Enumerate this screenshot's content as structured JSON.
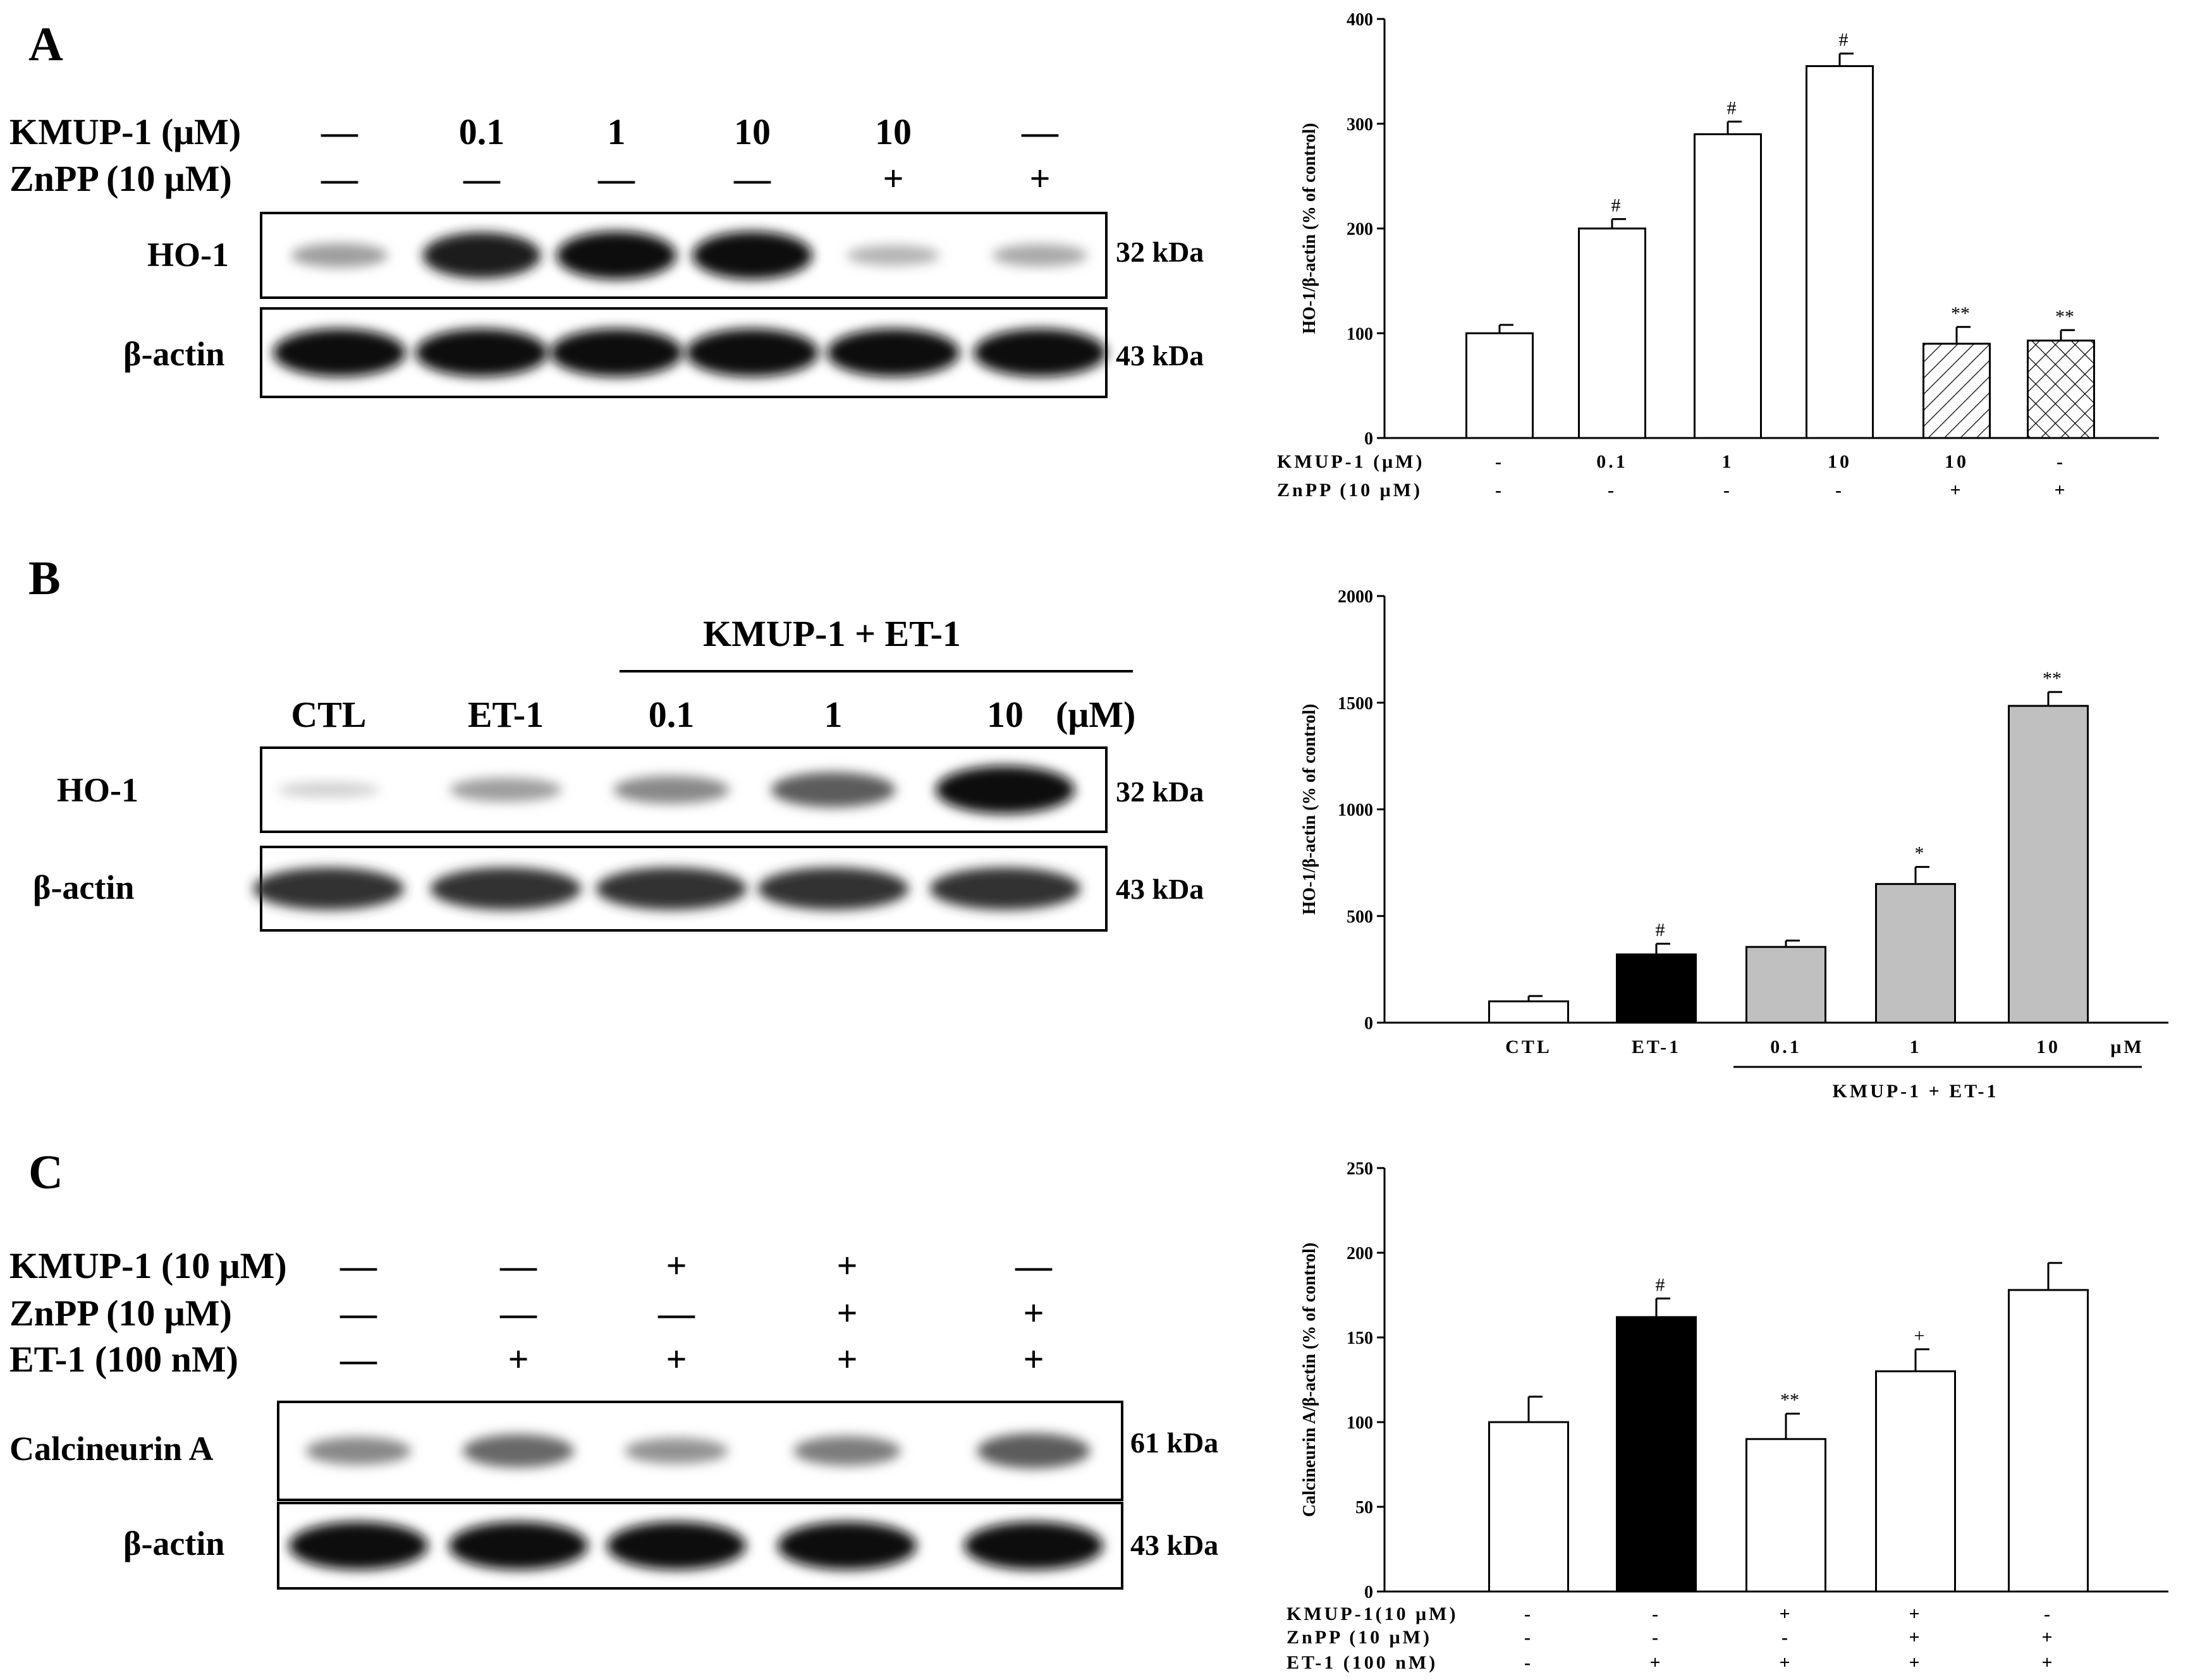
{
  "panels": [
    {
      "letter": "A",
      "blot": {
        "conditions": [
          {
            "label": "KMUP-1 (μM)",
            "values": [
              "—",
              "0.1",
              "1",
              "10",
              "10",
              "—"
            ]
          },
          {
            "label": "ZnPP (10 μM)",
            "values": [
              "—",
              "—",
              "—",
              "—",
              "+",
              "+"
            ]
          }
        ],
        "rows": [
          {
            "name": "HO-1",
            "kda": "32 kDa",
            "intensity": [
              0.35,
              0.95,
              1.0,
              1.0,
              0.25,
              0.3
            ]
          },
          {
            "name": "β-actin",
            "kda": "43 kDa",
            "intensity": [
              1.0,
              1.0,
              1.0,
              1.0,
              1.0,
              1.0
            ]
          }
        ]
      }
    },
    {
      "letter": "B",
      "blot": {
        "group_label": "KMUP-1 + ET-1",
        "lane_labels": [
          "CTL",
          "ET-1",
          "0.1",
          "1",
          "10"
        ],
        "unit": "(μM)",
        "rows": [
          {
            "name": "HO-1",
            "kda": "32 kDa",
            "intensity": [
              0.12,
              0.35,
              0.45,
              0.65,
              1.0
            ]
          },
          {
            "name": "β-actin",
            "kda": "43 kDa",
            "intensity": [
              0.85,
              0.85,
              0.85,
              0.85,
              0.85
            ]
          }
        ]
      }
    },
    {
      "letter": "C",
      "blot": {
        "conditions": [
          {
            "label": "KMUP-1 (10 μM)",
            "values": [
              "—",
              "—",
              "+",
              "+",
              "—"
            ]
          },
          {
            "label": "ZnPP (10 μM)",
            "values": [
              "—",
              "—",
              "—",
              "+",
              "+"
            ]
          },
          {
            "label": "ET-1 (100 nM)",
            "values": [
              "—",
              "+",
              "+",
              "+",
              "+"
            ]
          }
        ],
        "rows": [
          {
            "name": "Calcineurin A",
            "kda": "61 kDa",
            "intensity": [
              0.45,
              0.6,
              0.4,
              0.5,
              0.65
            ]
          },
          {
            "name": "β-actin",
            "kda": "43 kDa",
            "intensity": [
              1.0,
              1.0,
              1.0,
              1.0,
              1.0
            ]
          }
        ]
      }
    }
  ],
  "chart_data": [
    {
      "type": "bar",
      "ylabel": "HO-1/β-actin (% of control)",
      "ylim": [
        0,
        400
      ],
      "yticks": [
        0,
        100,
        200,
        300,
        400
      ],
      "values": [
        100,
        200,
        290,
        355,
        90,
        93
      ],
      "errors": [
        8,
        9,
        12,
        12,
        16,
        10
      ],
      "fills": [
        "white",
        "white",
        "white",
        "white",
        "hatch",
        "crosshatch"
      ],
      "significance": [
        "",
        "#",
        "#",
        "#",
        "**",
        "**"
      ],
      "condition_rows": [
        {
          "label": "KMUP-1 (μM)",
          "values": [
            "-",
            "0.1",
            "1",
            "10",
            "10",
            "-"
          ]
        },
        {
          "label": "ZnPP (10 μM)",
          "values": [
            "-",
            "-",
            "-",
            "-",
            "+",
            "+"
          ]
        }
      ]
    },
    {
      "type": "bar",
      "ylabel": "HO-1/β-actin (% of control)",
      "ylim": [
        0,
        2000
      ],
      "yticks": [
        0,
        500,
        1000,
        1500,
        2000
      ],
      "categories": [
        "CTL",
        "ET-1",
        "0.1",
        "1",
        "10"
      ],
      "unit": "μM",
      "group_label": "KMUP-1 + ET-1",
      "values": [
        100,
        320,
        355,
        650,
        1485
      ],
      "errors": [
        25,
        50,
        30,
        80,
        65
      ],
      "fills": [
        "white",
        "black",
        "gray",
        "gray",
        "gray"
      ],
      "significance": [
        "",
        "#",
        "",
        "*",
        "**"
      ]
    },
    {
      "type": "bar",
      "ylabel": "Calcineurin A/β-actin (% of control)",
      "ylim": [
        0,
        250
      ],
      "yticks": [
        0,
        50,
        100,
        150,
        200,
        250
      ],
      "values": [
        100,
        162,
        90,
        130,
        178
      ],
      "errors": [
        15,
        11,
        15,
        13,
        16
      ],
      "fills": [
        "white",
        "black",
        "white",
        "white",
        "white"
      ],
      "significance": [
        "",
        "#",
        "**",
        "+",
        ""
      ],
      "condition_rows": [
        {
          "label": "KMUP-1(10 μM)",
          "values": [
            "-",
            "-",
            "+",
            "+",
            "-"
          ]
        },
        {
          "label": "ZnPP (10 μM)",
          "values": [
            "-",
            "-",
            "-",
            "+",
            "+"
          ]
        },
        {
          "label": "ET-1 (100 nM)",
          "values": [
            "-",
            "+",
            "+",
            "+",
            "+"
          ]
        }
      ]
    }
  ]
}
